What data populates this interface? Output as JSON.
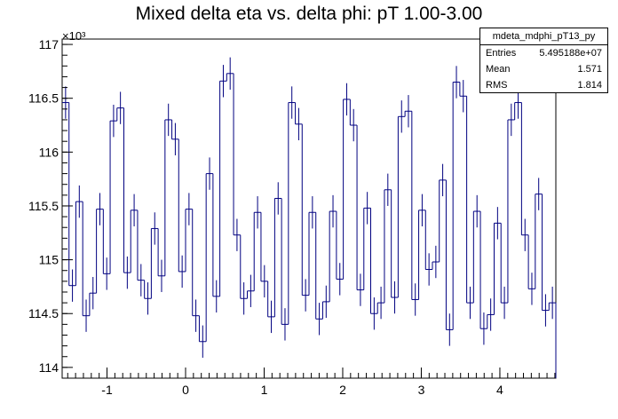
{
  "chart_data": {
    "type": "histogram",
    "title": "Mixed delta eta vs. delta phi: pT 1.00-3.00",
    "xlabel": "",
    "ylabel": "",
    "y_multiplier": "×10³",
    "xlim": [
      -1.5708,
      4.7124
    ],
    "ylim": [
      113.9,
      117.05
    ],
    "x_ticks": [
      -1,
      0,
      1,
      2,
      3,
      4
    ],
    "y_ticks": [
      114,
      114.5,
      115,
      115.5,
      116,
      116.5,
      117
    ],
    "bins": 72,
    "line_color": "#000080",
    "values": [
      116.46,
      114.76,
      115.54,
      114.48,
      114.69,
      115.47,
      114.87,
      116.29,
      116.41,
      114.88,
      115.46,
      114.81,
      114.64,
      115.29,
      114.85,
      116.3,
      116.12,
      114.89,
      115.47,
      114.48,
      114.24,
      115.8,
      114.66,
      116.66,
      116.73,
      115.23,
      114.64,
      114.71,
      115.44,
      114.8,
      114.47,
      115.57,
      114.4,
      116.46,
      116.26,
      114.67,
      115.44,
      114.45,
      114.61,
      115.45,
      114.82,
      116.49,
      116.25,
      114.72,
      115.48,
      114.5,
      114.6,
      115.65,
      114.65,
      116.33,
      116.38,
      114.63,
      115.46,
      114.91,
      114.98,
      115.74,
      114.35,
      116.65,
      116.52,
      114.6,
      115.45,
      114.36,
      114.49,
      115.34,
      114.6,
      116.3,
      116.46,
      115.23,
      114.73,
      115.61,
      114.53,
      114.6
    ]
  },
  "stats": {
    "name": "mdeta_mdphi_pT13_py",
    "rows": [
      {
        "key": "Entries",
        "value": "5.495188e+07"
      },
      {
        "key": "Mean",
        "value": "1.571"
      },
      {
        "key": "RMS",
        "value": "1.814"
      }
    ]
  }
}
